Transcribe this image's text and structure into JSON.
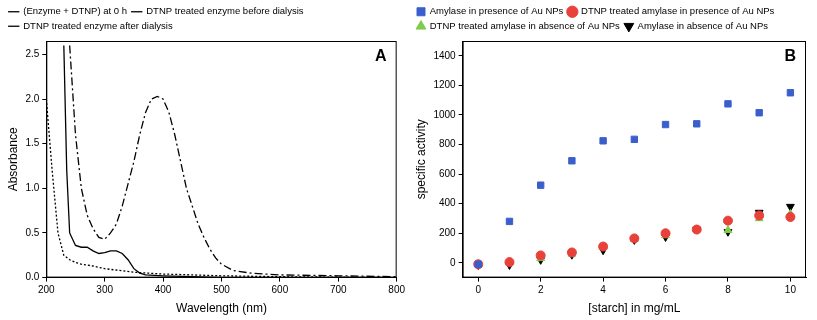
{
  "chart_data": [
    {
      "type": "line",
      "annotations": [
        "A"
      ],
      "x_label": "Wavelength (nm)",
      "y_label": "Absorbance",
      "xlim": [
        200,
        800
      ],
      "xticks": [
        200,
        300,
        400,
        500,
        600,
        700,
        800
      ],
      "ylim": [
        0,
        2.65
      ],
      "yticks": [
        {
          "value": 0,
          "label": "0.0"
        },
        0.5,
        {
          "value": 1,
          "label": "1.0"
        },
        1.5,
        {
          "value": 2,
          "label": "2.0"
        },
        2.5
      ],
      "grid": false,
      "legend": "top-left",
      "series": [
        {
          "name": "(Enzyme + DTNP) at 0 h",
          "color": "#000000",
          "line_style": "solid",
          "x": [
            230,
            235,
            240,
            250,
            260,
            270,
            280,
            290,
            300,
            310,
            320,
            330,
            340,
            350,
            360,
            370,
            400,
            450,
            500,
            600,
            700,
            800
          ],
          "values": [
            2.6,
            1.2,
            0.5,
            0.36,
            0.34,
            0.34,
            0.3,
            0.27,
            0.28,
            0.3,
            0.3,
            0.27,
            0.2,
            0.1,
            0.05,
            0.03,
            0.02,
            0.01,
            0,
            0,
            0,
            0
          ]
        },
        {
          "name": "DTNP treated enzyme before dialysis",
          "color": "#000000",
          "line_style": "dashdot",
          "x": [
            240,
            250,
            260,
            270,
            280,
            290,
            300,
            310,
            320,
            330,
            340,
            350,
            360,
            370,
            380,
            390,
            400,
            410,
            420,
            430,
            440,
            450,
            460,
            470,
            480,
            490,
            500,
            520,
            550,
            600,
            700,
            800
          ],
          "values": [
            2.6,
            1.6,
            1.0,
            0.7,
            0.55,
            0.45,
            0.43,
            0.5,
            0.6,
            0.8,
            1.05,
            1.3,
            1.6,
            1.85,
            2.0,
            2.03,
            2.0,
            1.85,
            1.6,
            1.3,
            1.0,
            0.8,
            0.6,
            0.45,
            0.32,
            0.22,
            0.15,
            0.08,
            0.05,
            0.03,
            0.02,
            0.01
          ]
        },
        {
          "name": "DTNP treated enzyme after dialysis",
          "color": "#000000",
          "line_style": "dotted",
          "x": [
            200,
            210,
            220,
            230,
            240,
            250,
            260,
            280,
            300,
            350,
            400,
            500,
            600,
            800
          ],
          "values": [
            2.0,
            1.2,
            0.5,
            0.25,
            0.2,
            0.17,
            0.15,
            0.13,
            0.1,
            0.06,
            0.04,
            0.02,
            0.01,
            0
          ]
        }
      ]
    },
    {
      "type": "scatter",
      "annotations": [
        "B"
      ],
      "x_label": "[starch] in mg/mL",
      "y_label": "specific activity",
      "xlim": [
        -0.5,
        10.5
      ],
      "xticks": [
        0,
        2,
        4,
        6,
        8,
        10
      ],
      "ylim": [
        -100,
        1500
      ],
      "yticks": [
        0,
        200,
        400,
        600,
        800,
        1000,
        1200,
        1400
      ],
      "grid": false,
      "legend": "top-left",
      "x": [
        0,
        1,
        2,
        3,
        4,
        5,
        6,
        7,
        8,
        9,
        10
      ],
      "series": [
        {
          "name": "Amylase in presence of Au NPs",
          "color": "#3a5fcd",
          "marker": "square",
          "values": [
            -10,
            280,
            525,
            690,
            825,
            835,
            935,
            940,
            1075,
            1015,
            1150
          ]
        },
        {
          "name": "DTNP treated amylase in presence of Au NPs",
          "color": "#e8413a",
          "marker": "circle",
          "values": [
            -10,
            5,
            50,
            70,
            110,
            165,
            200,
            225,
            285,
            320,
            310
          ]
        },
        {
          "name": "DTNP treated amylase in absence of Au NPs",
          "color": "#7fcc4a",
          "marker": "triangle",
          "values": [
            -10,
            0,
            30,
            60,
            105,
            160,
            185,
            225,
            220,
            300,
            330
          ]
        },
        {
          "name": "Amylase in absence of Au NPs",
          "color": "#000000",
          "marker": "triangle_down",
          "values": [
            -15,
            -15,
            20,
            55,
            85,
            155,
            175,
            225,
            210,
            340,
            380
          ]
        }
      ]
    }
  ]
}
